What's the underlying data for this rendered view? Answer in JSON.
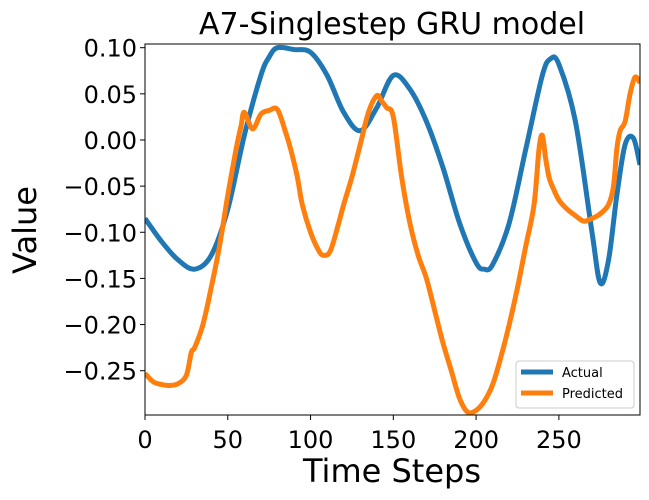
{
  "chart_data": {
    "type": "line",
    "title": "A7-Singlestep GRU model",
    "xlabel": "Time Steps",
    "ylabel": "Value",
    "xlim": [
      0,
      299
    ],
    "ylim": [
      -0.298,
      0.104
    ],
    "xticks": [
      0,
      50,
      100,
      150,
      200,
      250
    ],
    "xtick_labels": [
      "0",
      "50",
      "100",
      "150",
      "200",
      "250"
    ],
    "yticks": [
      0.1,
      0.05,
      0.0,
      -0.05,
      -0.1,
      -0.15,
      -0.2,
      -0.25
    ],
    "ytick_labels": [
      "0.10",
      "0.05",
      "0.00",
      "−0.05",
      "−0.10",
      "−0.15",
      "−0.20",
      "−0.25"
    ],
    "grid": false,
    "legend_position": "lower-right",
    "series": [
      {
        "name": "Actual",
        "color": "#1f77b4",
        "x": [
          0,
          10,
          20,
          30,
          40,
          50,
          60,
          70,
          75,
          80,
          90,
          100,
          110,
          120,
          130,
          140,
          150,
          160,
          170,
          180,
          190,
          200,
          205,
          210,
          220,
          230,
          240,
          245,
          250,
          260,
          270,
          275,
          280,
          285,
          290,
          295,
          299
        ],
        "y": [
          -0.085,
          -0.11,
          -0.13,
          -0.14,
          -0.125,
          -0.075,
          0.005,
          0.07,
          0.09,
          0.1,
          0.098,
          0.095,
          0.07,
          0.03,
          0.01,
          0.035,
          0.07,
          0.055,
          0.02,
          -0.03,
          -0.09,
          -0.133,
          -0.14,
          -0.135,
          -0.09,
          -0.01,
          0.07,
          0.088,
          0.082,
          0.02,
          -0.1,
          -0.155,
          -0.13,
          -0.06,
          -0.005,
          0.002,
          -0.027
        ]
      },
      {
        "name": "Predicted",
        "color": "#ff7f0e",
        "x": [
          0,
          5,
          10,
          15,
          20,
          25,
          28,
          30,
          35,
          40,
          45,
          50,
          55,
          58,
          60,
          65,
          70,
          75,
          80,
          85,
          88,
          92,
          95,
          100,
          105,
          108,
          112,
          117,
          120,
          125,
          130,
          135,
          140,
          143,
          146,
          150,
          155,
          160,
          165,
          170,
          175,
          180,
          185,
          190,
          195,
          200,
          205,
          210,
          215,
          220,
          225,
          230,
          235,
          238,
          240,
          242,
          244,
          246,
          250,
          255,
          260,
          265,
          270,
          275,
          280,
          283,
          285,
          287,
          290,
          293,
          296,
          299
        ],
        "y": [
          -0.253,
          -0.262,
          -0.265,
          -0.266,
          -0.264,
          -0.255,
          -0.23,
          -0.225,
          -0.2,
          -0.16,
          -0.115,
          -0.06,
          -0.01,
          0.015,
          0.03,
          0.012,
          0.028,
          0.032,
          0.033,
          0.008,
          -0.01,
          -0.04,
          -0.07,
          -0.1,
          -0.12,
          -0.125,
          -0.12,
          -0.09,
          -0.07,
          -0.04,
          -0.005,
          0.03,
          0.048,
          0.042,
          0.035,
          0.025,
          -0.04,
          -0.09,
          -0.125,
          -0.15,
          -0.185,
          -0.22,
          -0.25,
          -0.28,
          -0.295,
          -0.293,
          -0.283,
          -0.265,
          -0.235,
          -0.2,
          -0.16,
          -0.115,
          -0.07,
          -0.01,
          0.005,
          -0.02,
          -0.04,
          -0.05,
          -0.065,
          -0.075,
          -0.082,
          -0.088,
          -0.085,
          -0.08,
          -0.07,
          -0.05,
          -0.01,
          0.01,
          0.02,
          0.05,
          0.068,
          0.062
        ]
      }
    ]
  }
}
